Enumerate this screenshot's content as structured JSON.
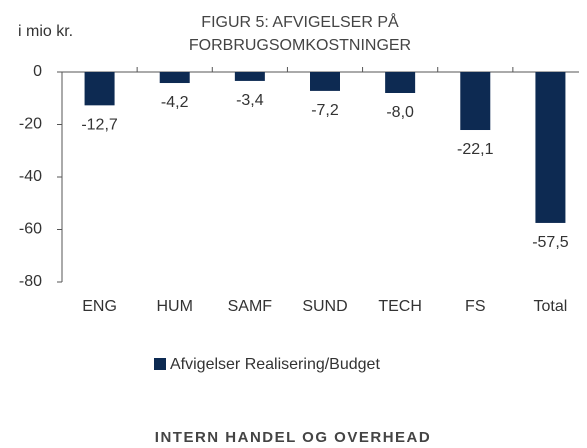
{
  "chart_data": {
    "type": "bar",
    "title": [
      "FIGUR 5: AFVIGELSER PÅ",
      "FORBRUGSOMKOSTNINGER"
    ],
    "y_label": "i mio kr.",
    "categories": [
      "ENG",
      "HUM",
      "SAMF",
      "SUND",
      "TECH",
      "FS",
      "Total"
    ],
    "series": [
      {
        "name": "Afvigelser Realisering/Budget",
        "color": "#0d2a52",
        "values": [
          -12.7,
          -4.2,
          -3.4,
          -7.2,
          -8.0,
          -22.1,
          -57.5
        ],
        "value_labels": [
          "-12,7",
          "-4,2",
          "-3,4",
          "-7,2",
          "-8,0",
          "-22,1",
          "-57,5"
        ]
      }
    ],
    "ylim": [
      -80,
      0
    ],
    "yticks": [
      0,
      -20,
      -40,
      -60,
      -80
    ],
    "grid": false
  },
  "section_heading": "INTERN HANDEL OG OVERHEAD"
}
